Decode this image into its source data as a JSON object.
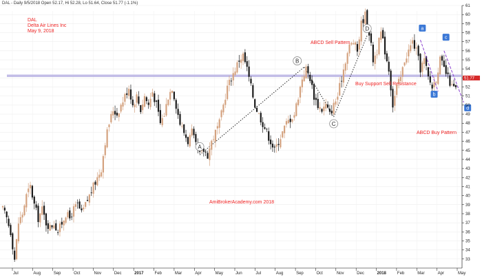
{
  "header": {
    "title_line": "DAL - Daily 9/5/2018 Open 52.17, Hi 52.28, Lo 51.64, Close 51.77 (-1.1%)"
  },
  "info": {
    "line1": "DAL",
    "line2": "Delta Air Lines Inc",
    "line3": "May 9, 2018"
  },
  "annotations": {
    "abcd_sell": "ABCD Sell Pattern",
    "abcd_buy": "ABCD Buy Pattern",
    "support": "Buy Support Sell Resistance",
    "watermark": "AmiBrokerAcademy.com  2018",
    "last_price": "51.77"
  },
  "chart_data": {
    "type": "candlestick",
    "ylim": [
      32,
      61
    ],
    "y_ticks": [
      33,
      34,
      35,
      36,
      37,
      38,
      39,
      40,
      41,
      42,
      43,
      44,
      45,
      46,
      47,
      48,
      49,
      50,
      51,
      52,
      53,
      54,
      55,
      56,
      57,
      58,
      59,
      60,
      61
    ],
    "x_ticks": [
      "Jul",
      "Aug",
      "Sep",
      "Oct",
      "Nov",
      "Dec",
      "2017",
      "Feb",
      "Mar",
      "Apr",
      "May",
      "Jun",
      "Jul",
      "Aug",
      "Sep",
      "Oct",
      "Nov",
      "Dec",
      "2018",
      "Feb",
      "Mar",
      "Apr",
      "May"
    ],
    "resistance_level": 52,
    "last_close": 51.77,
    "close_path": [
      [
        0,
        38.5
      ],
      [
        2,
        37.5
      ],
      [
        4,
        36
      ],
      [
        6,
        33
      ],
      [
        8,
        37
      ],
      [
        10,
        38
      ],
      [
        12,
        40
      ],
      [
        14,
        41
      ],
      [
        16,
        39
      ],
      [
        18,
        37.5
      ],
      [
        20,
        38.5
      ],
      [
        22,
        37
      ],
      [
        24,
        36.5
      ],
      [
        26,
        37
      ],
      [
        28,
        36
      ],
      [
        30,
        37
      ],
      [
        32,
        38
      ],
      [
        34,
        37.5
      ],
      [
        36,
        38.5
      ],
      [
        38,
        39
      ],
      [
        40,
        38
      ],
      [
        42,
        39
      ],
      [
        44,
        40
      ],
      [
        46,
        41
      ],
      [
        48,
        42
      ],
      [
        50,
        43
      ],
      [
        52,
        46
      ],
      [
        54,
        48
      ],
      [
        56,
        49.5
      ],
      [
        58,
        49
      ],
      [
        60,
        50
      ],
      [
        62,
        51
      ],
      [
        64,
        52
      ],
      [
        66,
        50
      ],
      [
        68,
        51
      ],
      [
        70,
        49.5
      ],
      [
        72,
        51
      ],
      [
        74,
        50
      ],
      [
        76,
        51.5
      ],
      [
        78,
        50
      ],
      [
        80,
        48
      ],
      [
        82,
        49
      ],
      [
        84,
        51
      ],
      [
        86,
        52
      ],
      [
        88,
        50
      ],
      [
        90,
        48
      ],
      [
        92,
        47
      ],
      [
        94,
        46
      ],
      [
        96,
        47
      ],
      [
        98,
        45.5
      ],
      [
        100,
        44.5
      ],
      [
        102,
        45
      ],
      [
        104,
        44.5
      ],
      [
        106,
        46
      ],
      [
        108,
        47
      ],
      [
        110,
        48
      ],
      [
        112,
        50
      ],
      [
        114,
        52
      ],
      [
        116,
        53
      ],
      [
        118,
        54
      ],
      [
        120,
        55
      ],
      [
        122,
        55.5
      ],
      [
        124,
        54
      ],
      [
        126,
        52
      ],
      [
        128,
        50
      ],
      [
        130,
        49
      ],
      [
        132,
        48
      ],
      [
        134,
        47
      ],
      [
        136,
        46
      ],
      [
        138,
        45
      ],
      [
        140,
        46
      ],
      [
        142,
        47
      ],
      [
        144,
        48
      ],
      [
        146,
        48.5
      ],
      [
        148,
        49
      ],
      [
        150,
        51
      ],
      [
        152,
        53
      ],
      [
        154,
        54
      ],
      [
        156,
        53
      ],
      [
        158,
        51
      ],
      [
        160,
        50
      ],
      [
        162,
        49.5
      ],
      [
        164,
        50
      ],
      [
        166,
        49
      ],
      [
        168,
        50
      ],
      [
        170,
        51
      ],
      [
        172,
        53
      ],
      [
        174,
        55
      ],
      [
        176,
        56.5
      ],
      [
        178,
        57
      ],
      [
        180,
        56
      ],
      [
        182,
        59
      ],
      [
        184,
        60
      ],
      [
        186,
        58
      ],
      [
        188,
        55
      ],
      [
        190,
        56
      ],
      [
        192,
        58
      ],
      [
        194,
        56
      ],
      [
        196,
        54
      ],
      [
        198,
        50
      ],
      [
        200,
        52
      ],
      [
        202,
        53
      ],
      [
        204,
        55
      ],
      [
        206,
        56
      ],
      [
        208,
        57
      ],
      [
        210,
        56
      ],
      [
        212,
        54
      ],
      [
        214,
        55
      ],
      [
        216,
        53
      ],
      [
        218,
        52
      ],
      [
        220,
        53
      ],
      [
        222,
        55
      ],
      [
        224,
        54
      ],
      [
        226,
        53
      ],
      [
        228,
        52
      ],
      [
        230,
        51.77
      ]
    ],
    "pattern_points": [
      {
        "label": "A",
        "x": 100,
        "y": 44.5
      },
      {
        "label": "B",
        "x": 153,
        "y": 54.2
      },
      {
        "label": "C",
        "x": 168,
        "y": 48.7
      },
      {
        "label": "D",
        "x": 185,
        "y": 57.7
      }
    ],
    "box_points": [
      {
        "label": "a",
        "x": 213,
        "y": 58.5
      },
      {
        "label": "b",
        "x": 219,
        "y": 51.2
      },
      {
        "label": "c",
        "x": 225,
        "y": 57.5
      },
      {
        "label": "d",
        "x": 236,
        "y": 49.7
      }
    ]
  }
}
